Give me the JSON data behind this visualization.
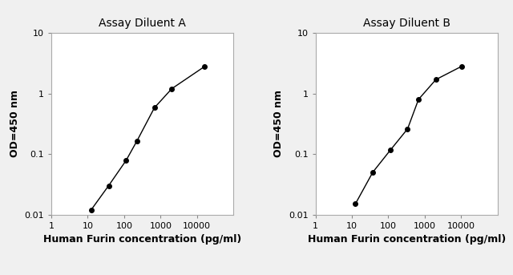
{
  "panel_A": {
    "title": "Assay Diluent A",
    "x": [
      12.5,
      37.5,
      112.5,
      225,
      675,
      2025,
      16200
    ],
    "y": [
      0.012,
      0.03,
      0.078,
      0.165,
      0.58,
      1.2,
      2.8
    ],
    "xlabel": "Human Furin concentration (pg/ml)",
    "ylabel": "OD=450 nm",
    "xlim": [
      1,
      100000
    ],
    "ylim": [
      0.01,
      10
    ]
  },
  "panel_B": {
    "title": "Assay Diluent B",
    "x": [
      12.5,
      37.5,
      112.5,
      337.5,
      675,
      2025,
      10125
    ],
    "y": [
      0.015,
      0.05,
      0.115,
      0.26,
      0.8,
      1.7,
      2.8
    ],
    "xlabel": "Human Furin concentration (pg/ml)",
    "ylabel": "OD=450 nm",
    "xlim": [
      1,
      100000
    ],
    "ylim": [
      0.01,
      10
    ]
  },
  "line_color": "#000000",
  "marker": "o",
  "markersize": 4,
  "linewidth": 1.0,
  "bg_color": "#f0f0f0",
  "plot_bg_color": "#ffffff",
  "title_fontsize": 10,
  "label_fontsize": 9,
  "tick_fontsize": 8
}
